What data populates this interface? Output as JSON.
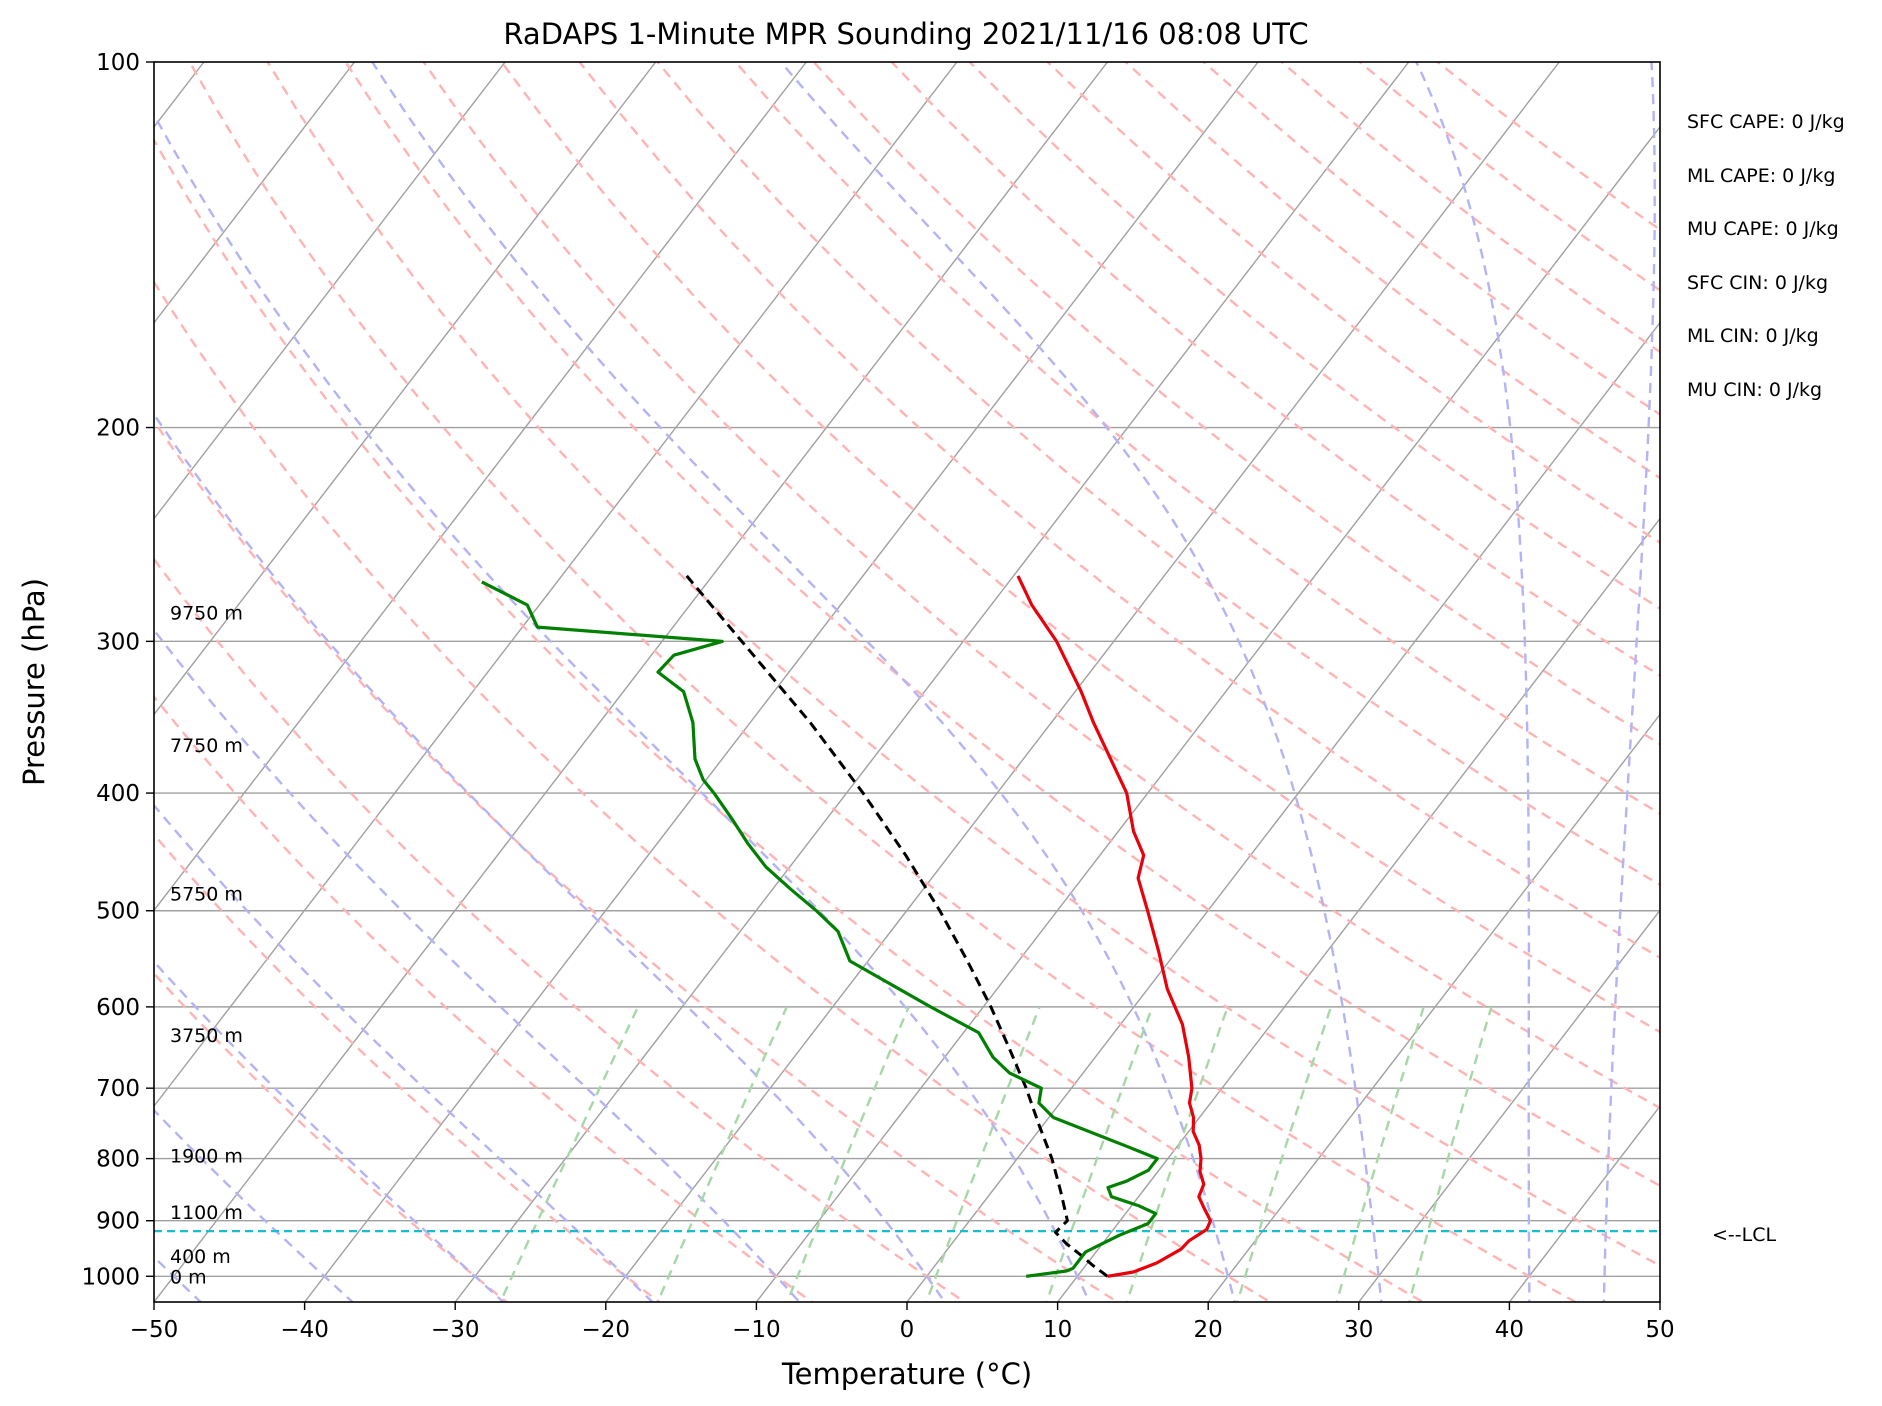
{
  "chart_data": {
    "type": "skew-t",
    "title": "RaDAPS 1-Minute MPR Sounding 2021/11/16 08:08 UTC",
    "xlabel": "Temperature (°C)",
    "ylabel": "Pressure (hPa)",
    "xlim": [
      -50,
      50
    ],
    "ylim": [
      1050,
      100
    ],
    "y_scale": "log",
    "skew_deg_per_decade": 62,
    "grid": true,
    "x_ticks": [
      "−50",
      "−40",
      "−30",
      "−20",
      "−10",
      "0",
      "10",
      "20",
      "30",
      "40",
      "50"
    ],
    "y_ticks": [
      100,
      200,
      300,
      400,
      500,
      600,
      700,
      800,
      900,
      1000
    ],
    "temperature": {
      "color": "#e8000b",
      "points": [
        [
          1000,
          12
        ],
        [
          992,
          13.5
        ],
        [
          975,
          14.6
        ],
        [
          950,
          15.5
        ],
        [
          935,
          15.6
        ],
        [
          915,
          16.2
        ],
        [
          900,
          16
        ],
        [
          880,
          15
        ],
        [
          860,
          14
        ],
        [
          840,
          13.7
        ],
        [
          820,
          12.8
        ],
        [
          800,
          12.2
        ],
        [
          780,
          11.4
        ],
        [
          760,
          10.3
        ],
        [
          740,
          9.6
        ],
        [
          720,
          8.6
        ],
        [
          700,
          8
        ],
        [
          660,
          6.2
        ],
        [
          620,
          4.1
        ],
        [
          580,
          1.3
        ],
        [
          540,
          -1.2
        ],
        [
          500,
          -4
        ],
        [
          470,
          -6.3
        ],
        [
          450,
          -7.1
        ],
        [
          430,
          -9
        ],
        [
          400,
          -11.4
        ],
        [
          350,
          -17.2
        ],
        [
          330,
          -19.6
        ],
        [
          300,
          -23.8
        ],
        [
          280,
          -27.3
        ],
        [
          265,
          -29.7
        ]
      ]
    },
    "dewpoint": {
      "color": "#008000",
      "points": [
        [
          1000,
          6.6
        ],
        [
          990,
          9
        ],
        [
          985,
          9.3
        ],
        [
          968,
          9.3
        ],
        [
          955,
          9.3
        ],
        [
          940,
          10
        ],
        [
          925,
          10.7
        ],
        [
          905,
          12
        ],
        [
          888,
          12
        ],
        [
          875,
          10.5
        ],
        [
          860,
          8.2
        ],
        [
          845,
          7.5
        ],
        [
          835,
          8.4
        ],
        [
          818,
          9.3
        ],
        [
          800,
          9.3
        ],
        [
          780,
          6.4
        ],
        [
          740,
          0.3
        ],
        [
          720,
          -1.4
        ],
        [
          700,
          -2
        ],
        [
          680,
          -4.9
        ],
        [
          660,
          -6.8
        ],
        [
          630,
          -9
        ],
        [
          600,
          -13.5
        ],
        [
          550,
          -21.2
        ],
        [
          520,
          -23.5
        ],
        [
          500,
          -26
        ],
        [
          480,
          -28.8
        ],
        [
          460,
          -31.6
        ],
        [
          440,
          -34
        ],
        [
          420,
          -36.3
        ],
        [
          400,
          -38.8
        ],
        [
          390,
          -40.2
        ],
        [
          375,
          -41.8
        ],
        [
          350,
          -43.8
        ],
        [
          330,
          -46
        ],
        [
          318,
          -48.7
        ],
        [
          308,
          -48.5
        ],
        [
          300,
          -46
        ],
        [
          292,
          -59
        ],
        [
          280,
          -60.8
        ],
        [
          268,
          -65
        ]
      ]
    },
    "parcel": {
      "color": "#000000",
      "points": [
        [
          1000,
          12
        ],
        [
          980,
          10.5
        ],
        [
          960,
          9.1
        ],
        [
          940,
          7.6
        ],
        [
          920,
          6.3
        ],
        [
          900,
          6.5
        ],
        [
          850,
          4.5
        ],
        [
          800,
          2.3
        ],
        [
          750,
          -0.3
        ],
        [
          700,
          -3
        ],
        [
          650,
          -6.1
        ],
        [
          600,
          -9.5
        ],
        [
          550,
          -13.4
        ],
        [
          500,
          -17.8
        ],
        [
          450,
          -22.9
        ],
        [
          400,
          -28.9
        ],
        [
          350,
          -36
        ],
        [
          300,
          -44.7
        ],
        [
          265,
          -51.7
        ]
      ]
    },
    "lcl_hpa": 918,
    "lcl_color": "#17becf",
    "lcl_label": "<--LCL",
    "height_labels": [
      {
        "text": "9750 m",
        "p": 284
      },
      {
        "text": "7750 m",
        "p": 365
      },
      {
        "text": "5750 m",
        "p": 484
      },
      {
        "text": "3750 m",
        "p": 633
      },
      {
        "text": "1900 m",
        "p": 795
      },
      {
        "text": "1100 m",
        "p": 885
      },
      {
        "text": "400 m",
        "p": 962
      },
      {
        "text": "0 m",
        "p": 1000
      }
    ],
    "dry_adiabat_theta_c": [
      -30,
      -20,
      -10,
      0,
      10,
      20,
      30,
      40,
      50,
      60,
      70,
      80,
      90,
      100,
      110,
      120,
      130,
      140,
      150,
      160,
      170,
      180,
      190,
      200
    ],
    "moist_adiabat_start_c": [
      -50,
      -40,
      -30,
      -20,
      -10,
      0,
      10,
      20,
      30,
      40,
      45
    ],
    "mixing_ratio_gkg": [
      0.4,
      1,
      2,
      4,
      7,
      10,
      16,
      24,
      32
    ],
    "isotherm_colors": {
      "isotherm": "#a0a0a0",
      "dry_adiabat": "#ffb3b3",
      "moist_adiabat": "#b3b3f5",
      "mixing_ratio": "#a6d8a6"
    }
  },
  "indices": [
    "SFC CAPE: 0 J/kg",
    "ML CAPE: 0 J/kg",
    "MU CAPE: 0 J/kg",
    "SFC CIN: 0 J/kg",
    "ML CIN: 0 J/kg",
    "MU CIN: 0 J/kg"
  ]
}
